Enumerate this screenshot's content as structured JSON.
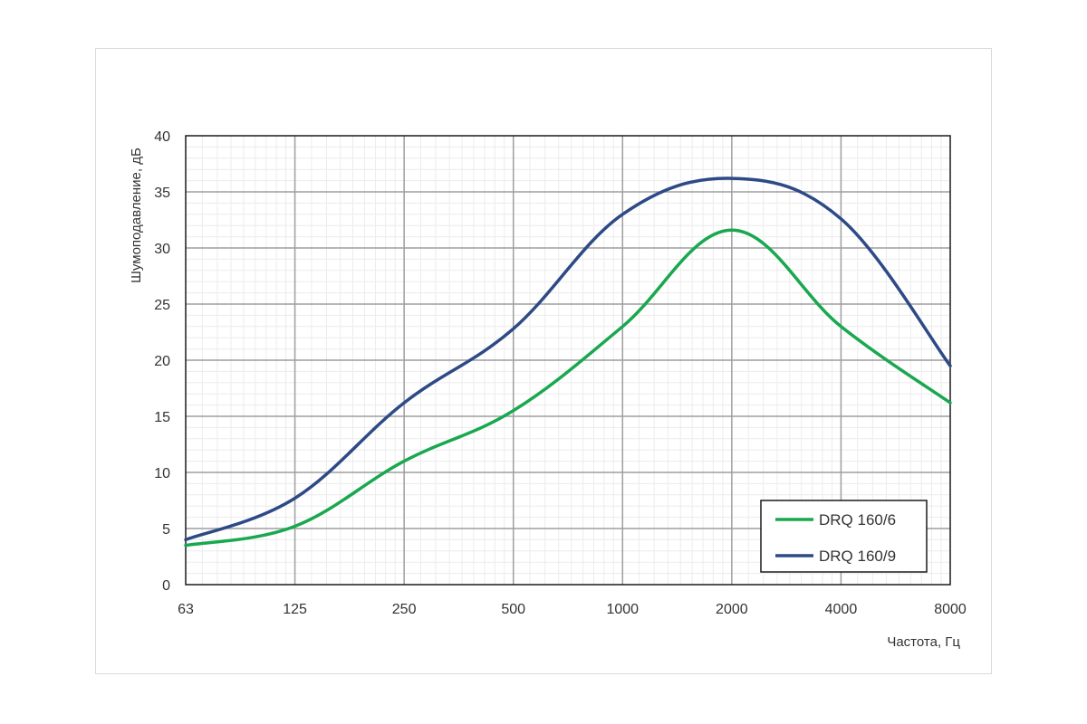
{
  "chart_data": {
    "type": "line",
    "title": "",
    "xlabel": "Частота, Гц",
    "ylabel": "Шумоподавление, дБ",
    "x_scale": "log2",
    "categories": [
      "63",
      "125",
      "250",
      "500",
      "1000",
      "2000",
      "4000",
      "8000"
    ],
    "ylim": [
      0,
      40
    ],
    "yticks": [
      "0",
      "5",
      "10",
      "15",
      "20",
      "25",
      "30",
      "35",
      "40"
    ],
    "grid": true,
    "legend_position": "bottom-right",
    "series": [
      {
        "name": "DRQ 160/6",
        "color": "#19a84f",
        "values": [
          3.5,
          5.2,
          11.0,
          15.5,
          23.0,
          31.6,
          23.0,
          16.2
        ]
      },
      {
        "name": "DRQ 160/9",
        "color": "#2e4a86",
        "values": [
          4.0,
          7.7,
          16.2,
          22.8,
          33.0,
          36.2,
          32.6,
          19.5
        ]
      }
    ]
  }
}
